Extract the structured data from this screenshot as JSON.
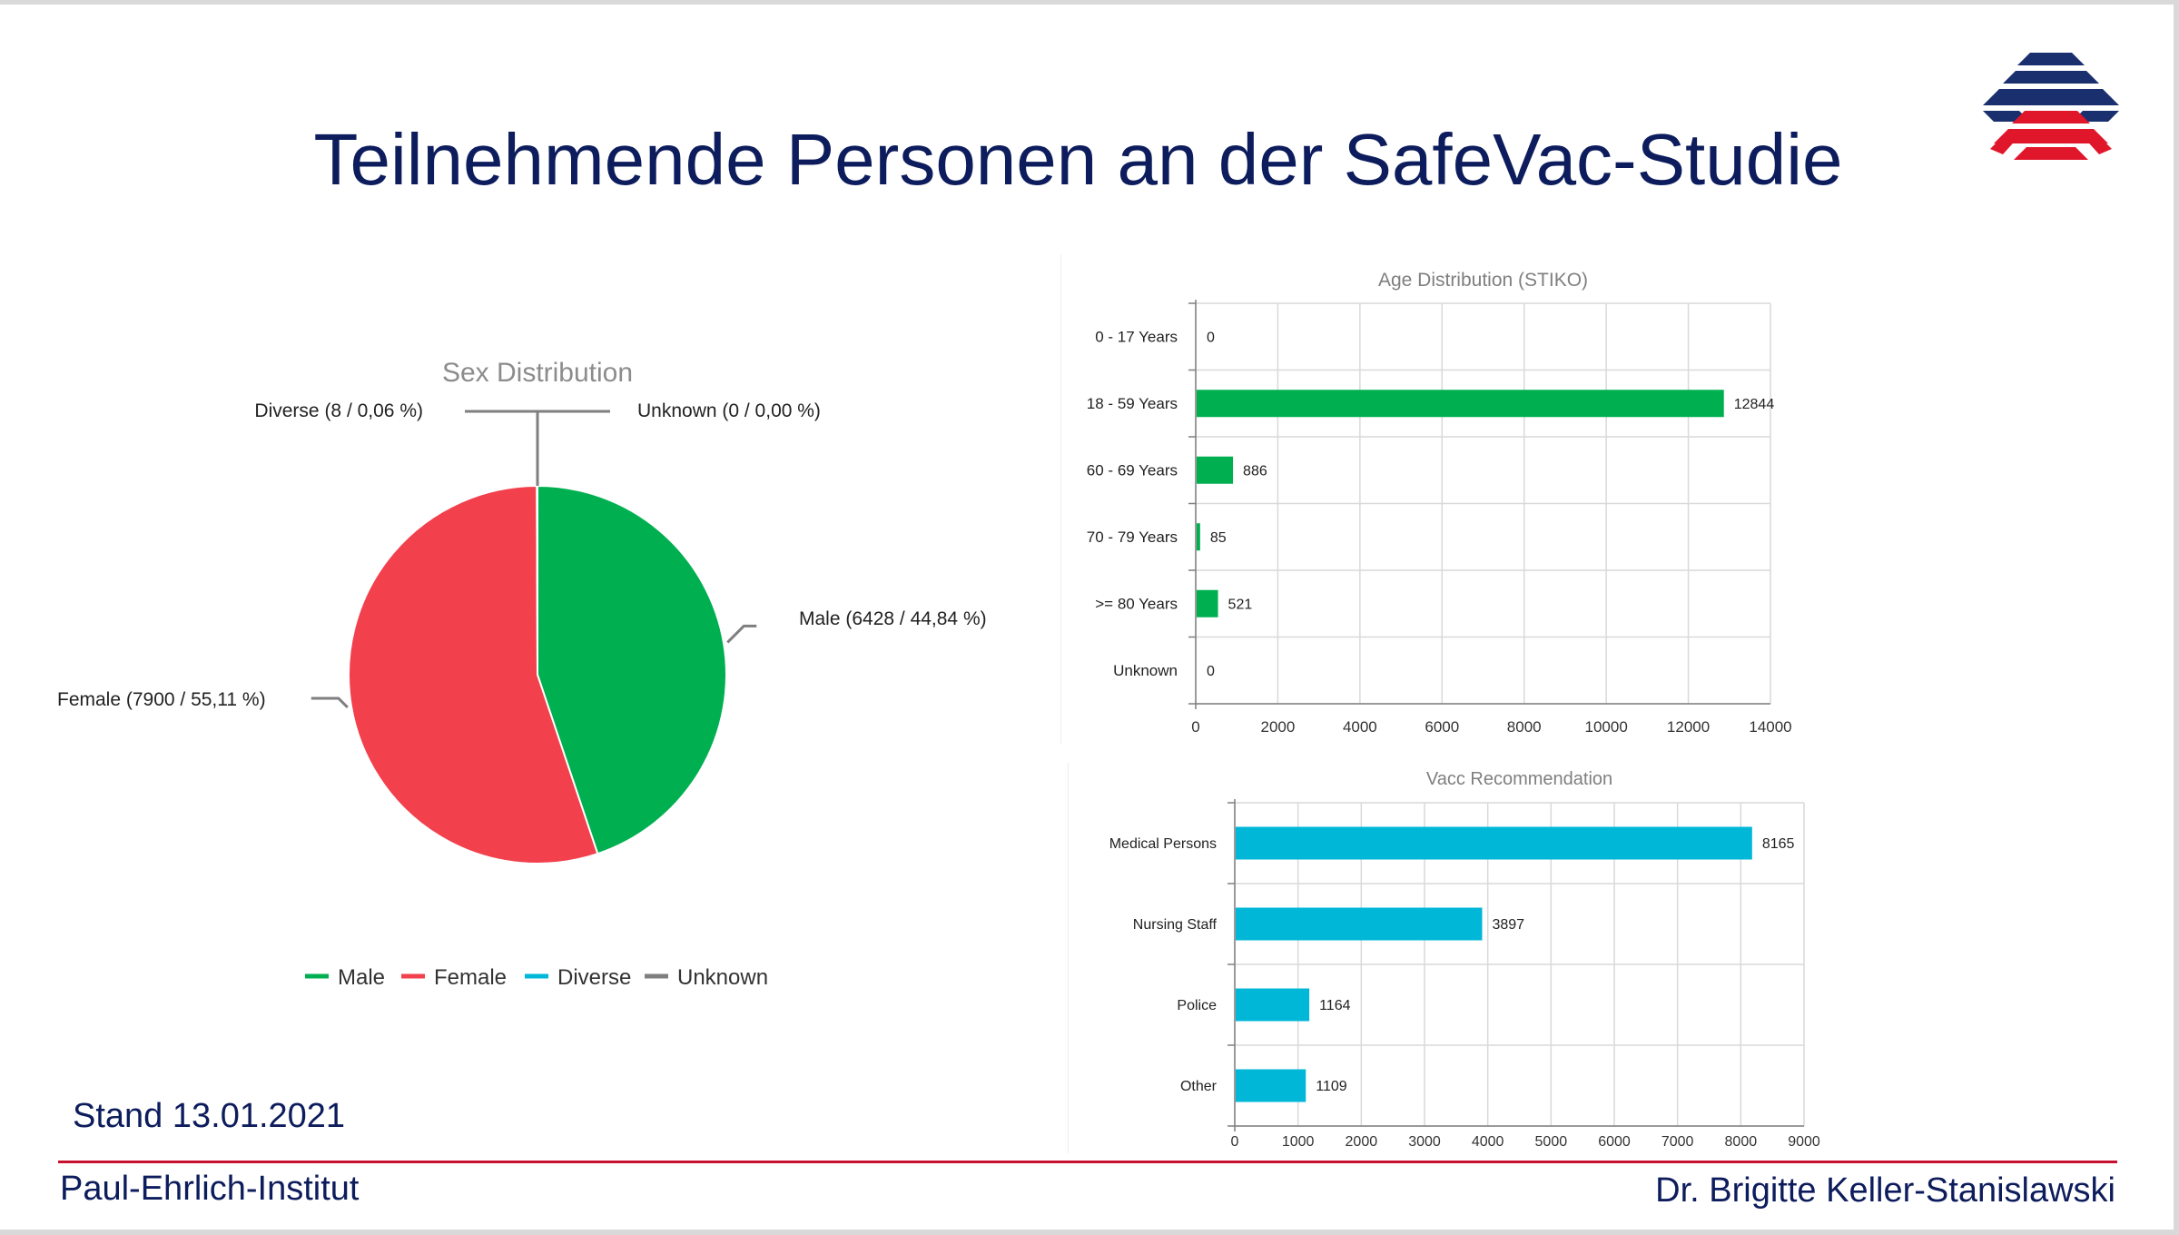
{
  "slide": {
    "title": "Teilnehmende Personen an der SafeVac-Studie",
    "stand": "Stand 13.01.2021",
    "footer_left": "Paul-Ehrlich-Institut",
    "footer_right": "Dr. Brigitte Keller-Stanislawski"
  },
  "colors": {
    "title": "#0d1c5c",
    "accent_red": "#c8102e",
    "male": "#00b050",
    "female": "#f2404d",
    "diverse": "#00b7d8",
    "unknown": "#7f7f7f",
    "age_bar": "#00b050",
    "vacc_bar": "#00b7d8"
  },
  "chart_data": [
    {
      "type": "pie",
      "title": "Sex Distribution",
      "categories": [
        "Male",
        "Female",
        "Diverse",
        "Unknown"
      ],
      "values": [
        6428,
        7900,
        8,
        0
      ],
      "percentages": [
        44.84,
        55.11,
        0.06,
        0.0
      ],
      "data_labels": [
        "Male (6428 / 44,84 %)",
        "Female (7900 / 55,11 %)",
        "Diverse (8 / 0,06 %)",
        "Unknown (0 / 0,00 %)"
      ],
      "colors": [
        "#00b050",
        "#f2404d",
        "#00b7d8",
        "#7f7f7f"
      ],
      "legend": [
        "Male",
        "Female",
        "Diverse",
        "Unknown"
      ],
      "legend_position": "bottom"
    },
    {
      "type": "bar",
      "orientation": "horizontal",
      "title": "Age Distribution (STIKO)",
      "categories": [
        "0 - 17 Years",
        "18 - 59 Years",
        "60 - 69 Years",
        "70 - 79 Years",
        ">= 80 Years",
        "Unknown"
      ],
      "values": [
        0,
        12844,
        886,
        85,
        521,
        0
      ],
      "xlim": [
        0,
        14000
      ],
      "xticks": [
        0,
        2000,
        4000,
        6000,
        8000,
        10000,
        12000,
        14000
      ],
      "grid": true,
      "color": "#00b050"
    },
    {
      "type": "bar",
      "orientation": "horizontal",
      "title": "Vacc Recommendation",
      "categories": [
        "Medical Persons",
        "Nursing Staff",
        "Police",
        "Other"
      ],
      "values": [
        8165,
        3897,
        1164,
        1109
      ],
      "xlim": [
        0,
        9000
      ],
      "xticks": [
        0,
        1000,
        2000,
        3000,
        4000,
        5000,
        6000,
        7000,
        8000,
        9000
      ],
      "grid": true,
      "color": "#00b7d8"
    }
  ]
}
